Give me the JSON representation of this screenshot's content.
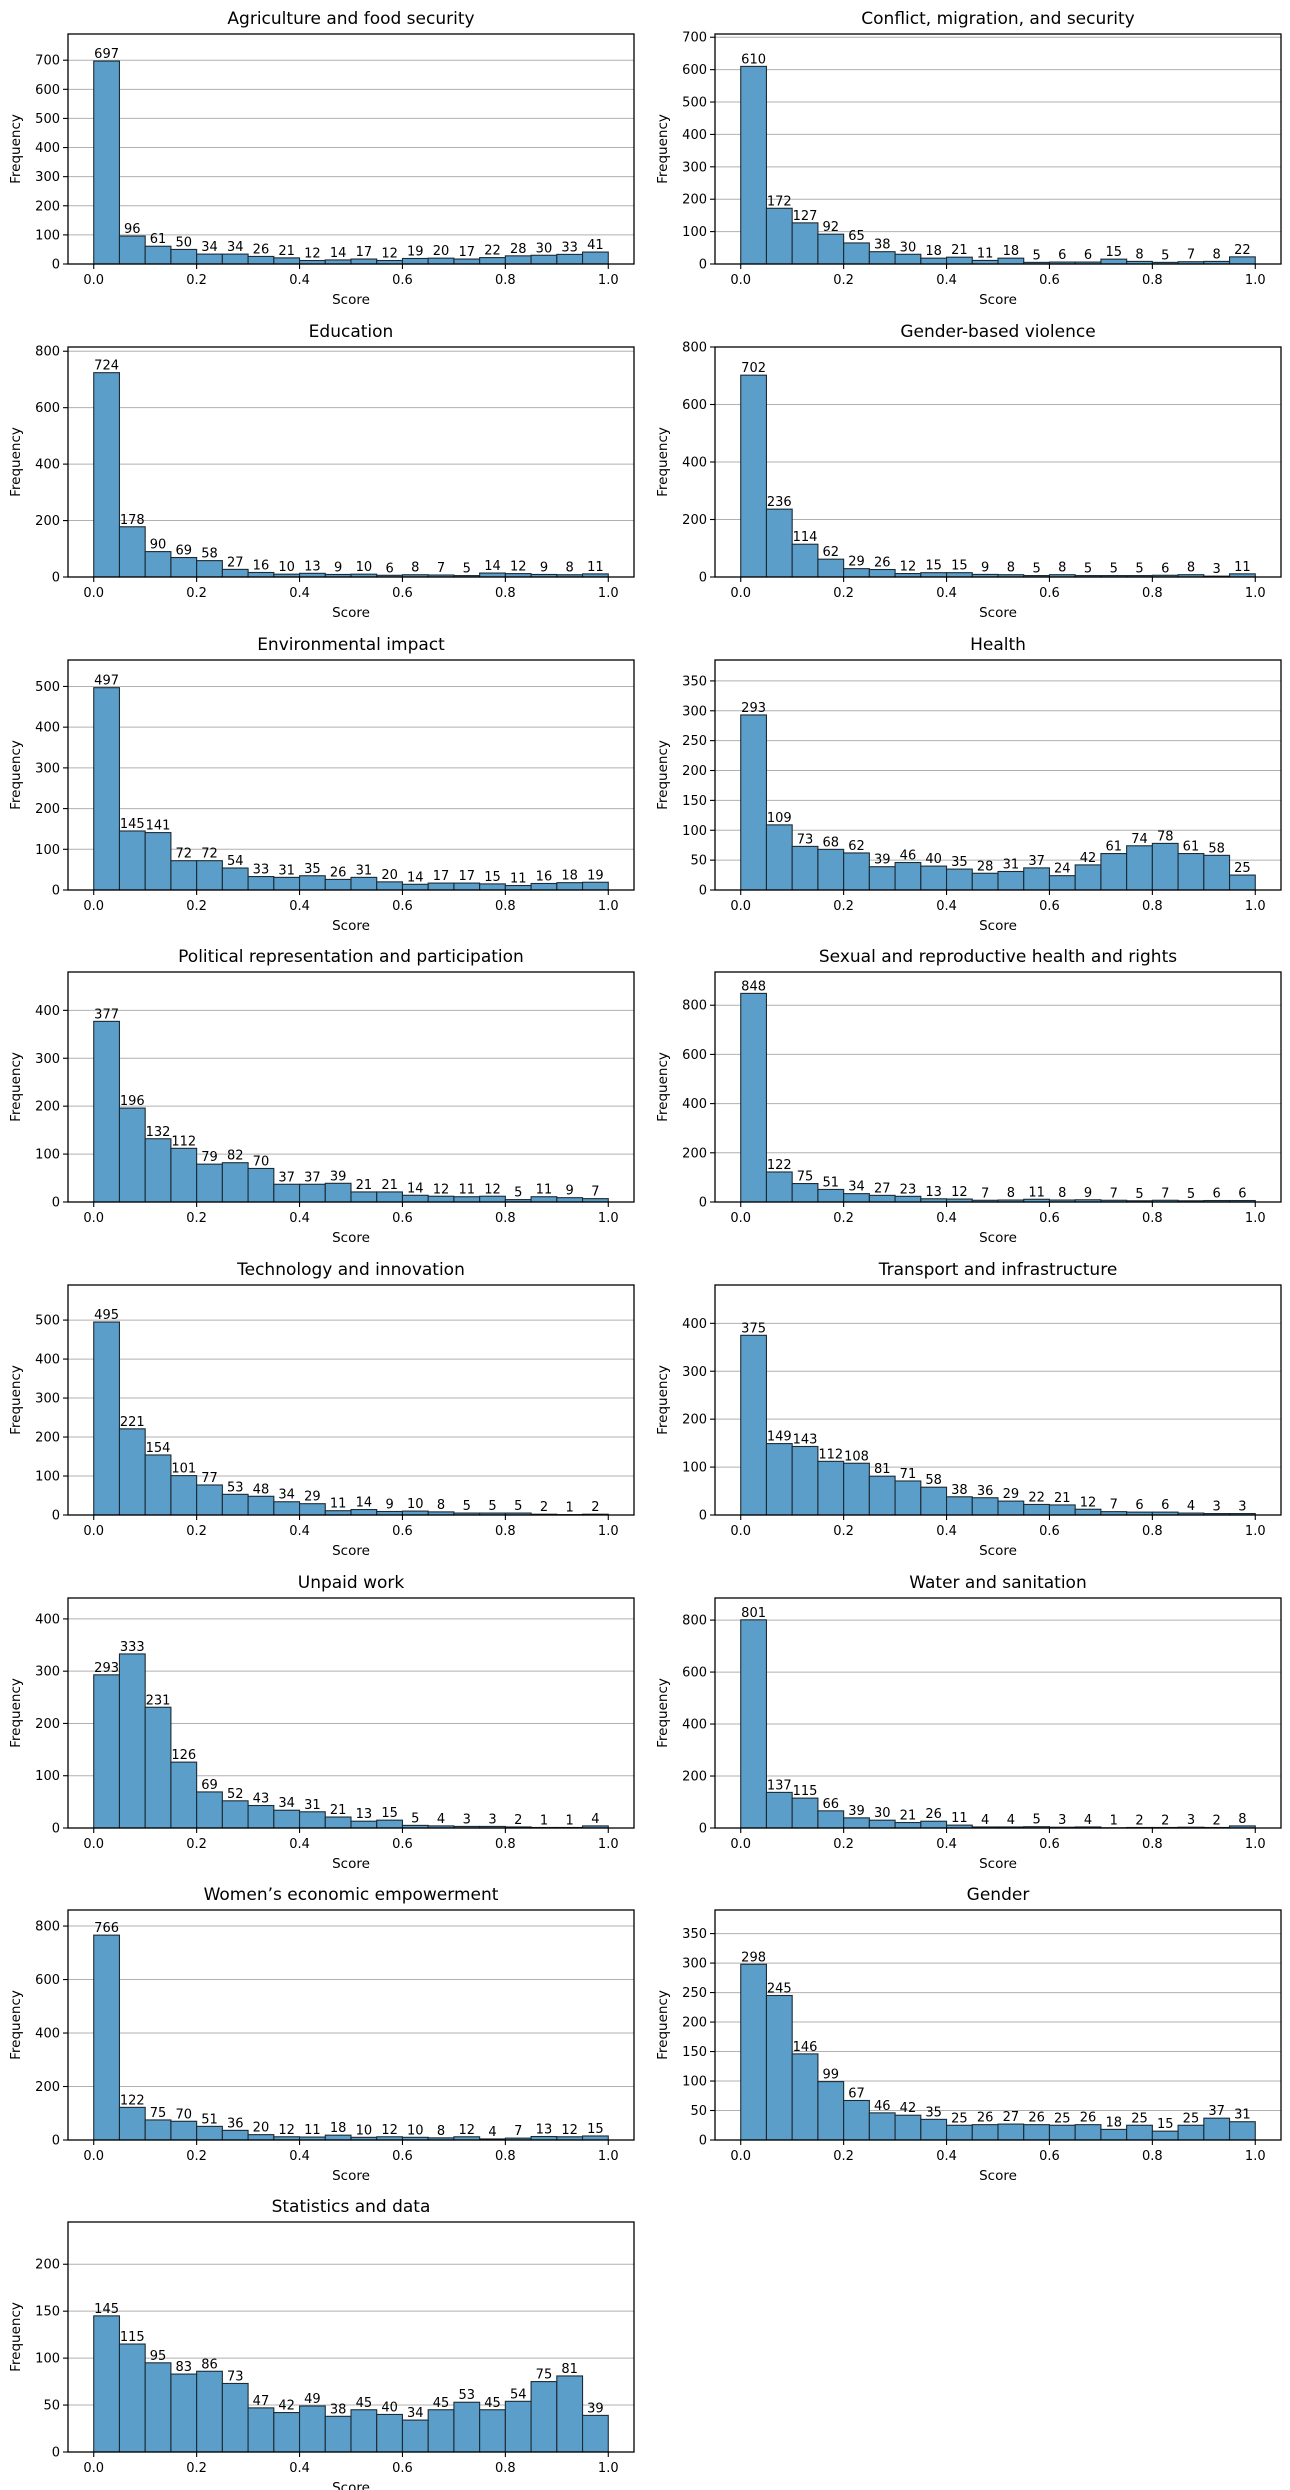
{
  "figure": {
    "xlabel": "Score",
    "ylabel": "Frequency"
  },
  "chart_data": [
    {
      "type": "bar",
      "title": "Agriculture and food security",
      "xlabel": "Score",
      "ylabel": "Frequency",
      "bin_start": 0.0,
      "bin_width": 0.05,
      "xlim": [
        -0.05,
        1.05
      ],
      "xticks": [
        0.0,
        0.2,
        0.4,
        0.6,
        0.8,
        1.0
      ],
      "ylim": [
        0,
        790
      ],
      "yticks": [
        0,
        100,
        200,
        300,
        400,
        500,
        600,
        700
      ],
      "values": [
        697,
        96,
        61,
        50,
        34,
        34,
        26,
        21,
        12,
        14,
        17,
        12,
        19,
        20,
        17,
        22,
        28,
        30,
        33,
        41
      ]
    },
    {
      "type": "bar",
      "title": "Conflict, migration, and security",
      "xlabel": "Score",
      "ylabel": "Frequency",
      "bin_start": 0.0,
      "bin_width": 0.05,
      "xlim": [
        -0.05,
        1.05
      ],
      "xticks": [
        0.0,
        0.2,
        0.4,
        0.6,
        0.8,
        1.0
      ],
      "ylim": [
        0,
        710
      ],
      "yticks": [
        0,
        100,
        200,
        300,
        400,
        500,
        600,
        700
      ],
      "values": [
        610,
        172,
        127,
        92,
        65,
        38,
        30,
        18,
        21,
        11,
        18,
        5,
        6,
        6,
        15,
        8,
        5,
        7,
        8,
        22
      ]
    },
    {
      "type": "bar",
      "title": "Education",
      "xlabel": "Score",
      "ylabel": "Frequency",
      "bin_start": 0.0,
      "bin_width": 0.05,
      "xlim": [
        -0.05,
        1.05
      ],
      "xticks": [
        0.0,
        0.2,
        0.4,
        0.6,
        0.8,
        1.0
      ],
      "ylim": [
        0,
        815
      ],
      "yticks": [
        0,
        200,
        400,
        600,
        800
      ],
      "values": [
        724,
        178,
        90,
        69,
        58,
        27,
        16,
        10,
        13,
        9,
        10,
        6,
        8,
        7,
        5,
        14,
        12,
        9,
        8,
        11
      ]
    },
    {
      "type": "bar",
      "title": "Gender-based violence",
      "xlabel": "Score",
      "ylabel": "Frequency",
      "bin_start": 0.0,
      "bin_width": 0.05,
      "xlim": [
        -0.05,
        1.05
      ],
      "xticks": [
        0.0,
        0.2,
        0.4,
        0.6,
        0.8,
        1.0
      ],
      "ylim": [
        0,
        800
      ],
      "yticks": [
        0,
        200,
        400,
        600,
        800
      ],
      "values": [
        702,
        236,
        114,
        62,
        29,
        26,
        12,
        15,
        15,
        9,
        8,
        5,
        8,
        5,
        5,
        5,
        6,
        8,
        3,
        11
      ]
    },
    {
      "type": "bar",
      "title": "Environmental impact",
      "xlabel": "Score",
      "ylabel": "Frequency",
      "bin_start": 0.0,
      "bin_width": 0.05,
      "xlim": [
        -0.05,
        1.05
      ],
      "xticks": [
        0.0,
        0.2,
        0.4,
        0.6,
        0.8,
        1.0
      ],
      "ylim": [
        0,
        565
      ],
      "yticks": [
        0,
        100,
        200,
        300,
        400,
        500
      ],
      "values": [
        497,
        145,
        141,
        72,
        72,
        54,
        33,
        31,
        35,
        26,
        31,
        20,
        14,
        17,
        17,
        15,
        11,
        16,
        18,
        19
      ]
    },
    {
      "type": "bar",
      "title": "Health",
      "xlabel": "Score",
      "ylabel": "Frequency",
      "bin_start": 0.0,
      "bin_width": 0.05,
      "xlim": [
        -0.05,
        1.05
      ],
      "xticks": [
        0.0,
        0.2,
        0.4,
        0.6,
        0.8,
        1.0
      ],
      "ylim": [
        0,
        385
      ],
      "yticks": [
        0,
        50,
        100,
        150,
        200,
        250,
        300,
        350
      ],
      "values": [
        293,
        109,
        73,
        68,
        62,
        39,
        46,
        40,
        35,
        28,
        31,
        37,
        24,
        42,
        61,
        74,
        78,
        61,
        58,
        25
      ]
    },
    {
      "type": "bar",
      "title": "Political representation and participation",
      "xlabel": "Score",
      "ylabel": "Frequency",
      "bin_start": 0.0,
      "bin_width": 0.05,
      "xlim": [
        -0.05,
        1.05
      ],
      "xticks": [
        0.0,
        0.2,
        0.4,
        0.6,
        0.8,
        1.0
      ],
      "ylim": [
        0,
        480
      ],
      "yticks": [
        0,
        100,
        200,
        300,
        400
      ],
      "values": [
        377,
        196,
        132,
        112,
        79,
        82,
        70,
        37,
        37,
        39,
        21,
        21,
        14,
        12,
        11,
        12,
        5,
        11,
        9,
        7
      ]
    },
    {
      "type": "bar",
      "title": "Sexual and reproductive health and rights",
      "xlabel": "Score",
      "ylabel": "Frequency",
      "bin_start": 0.0,
      "bin_width": 0.05,
      "xlim": [
        -0.05,
        1.05
      ],
      "xticks": [
        0.0,
        0.2,
        0.4,
        0.6,
        0.8,
        1.0
      ],
      "ylim": [
        0,
        935
      ],
      "yticks": [
        0,
        200,
        400,
        600,
        800
      ],
      "values": [
        848,
        122,
        75,
        51,
        34,
        27,
        23,
        13,
        12,
        7,
        8,
        11,
        8,
        9,
        7,
        5,
        7,
        5,
        6,
        6
      ]
    },
    {
      "type": "bar",
      "title": "Technology and innovation",
      "xlabel": "Score",
      "ylabel": "Frequency",
      "bin_start": 0.0,
      "bin_width": 0.05,
      "xlim": [
        -0.05,
        1.05
      ],
      "xticks": [
        0.0,
        0.2,
        0.4,
        0.6,
        0.8,
        1.0
      ],
      "ylim": [
        0,
        590
      ],
      "yticks": [
        0,
        100,
        200,
        300,
        400,
        500
      ],
      "values": [
        495,
        221,
        154,
        101,
        77,
        53,
        48,
        34,
        29,
        11,
        14,
        9,
        10,
        8,
        5,
        5,
        5,
        2,
        1,
        2
      ]
    },
    {
      "type": "bar",
      "title": "Transport and infrastructure",
      "xlabel": "Score",
      "ylabel": "Frequency",
      "bin_start": 0.0,
      "bin_width": 0.05,
      "xlim": [
        -0.05,
        1.05
      ],
      "xticks": [
        0.0,
        0.2,
        0.4,
        0.6,
        0.8,
        1.0
      ],
      "ylim": [
        0,
        480
      ],
      "yticks": [
        0,
        100,
        200,
        300,
        400
      ],
      "values": [
        375,
        149,
        143,
        112,
        108,
        81,
        71,
        58,
        38,
        36,
        29,
        22,
        21,
        12,
        7,
        6,
        6,
        4,
        3,
        3
      ]
    },
    {
      "type": "bar",
      "title": "Unpaid work",
      "xlabel": "Score",
      "ylabel": "Frequency",
      "bin_start": 0.0,
      "bin_width": 0.05,
      "xlim": [
        -0.05,
        1.05
      ],
      "xticks": [
        0.0,
        0.2,
        0.4,
        0.6,
        0.8,
        1.0
      ],
      "ylim": [
        0,
        440
      ],
      "yticks": [
        0,
        100,
        200,
        300,
        400
      ],
      "values": [
        293,
        333,
        231,
        126,
        69,
        52,
        43,
        34,
        31,
        21,
        13,
        15,
        5,
        4,
        3,
        3,
        2,
        1,
        1,
        4
      ]
    },
    {
      "type": "bar",
      "title": "Water and sanitation",
      "xlabel": "Score",
      "ylabel": "Frequency",
      "bin_start": 0.0,
      "bin_width": 0.05,
      "xlim": [
        -0.05,
        1.05
      ],
      "xticks": [
        0.0,
        0.2,
        0.4,
        0.6,
        0.8,
        1.0
      ],
      "ylim": [
        0,
        885
      ],
      "yticks": [
        0,
        200,
        400,
        600,
        800
      ],
      "values": [
        801,
        137,
        115,
        66,
        39,
        30,
        21,
        26,
        11,
        4,
        4,
        5,
        3,
        4,
        1,
        2,
        2,
        3,
        2,
        8
      ]
    },
    {
      "type": "bar",
      "title": "Women’s economic empowerment",
      "xlabel": "Score",
      "ylabel": "Frequency",
      "bin_start": 0.0,
      "bin_width": 0.05,
      "xlim": [
        -0.05,
        1.05
      ],
      "xticks": [
        0.0,
        0.2,
        0.4,
        0.6,
        0.8,
        1.0
      ],
      "ylim": [
        0,
        860
      ],
      "yticks": [
        0,
        200,
        400,
        600,
        800
      ],
      "values": [
        766,
        122,
        75,
        70,
        51,
        36,
        20,
        12,
        11,
        18,
        10,
        12,
        10,
        8,
        12,
        4,
        7,
        13,
        12,
        15
      ]
    },
    {
      "type": "bar",
      "title": "Gender",
      "xlabel": "Score",
      "ylabel": "Frequency",
      "bin_start": 0.0,
      "bin_width": 0.05,
      "xlim": [
        -0.05,
        1.05
      ],
      "xticks": [
        0.0,
        0.2,
        0.4,
        0.6,
        0.8,
        1.0
      ],
      "ylim": [
        0,
        390
      ],
      "yticks": [
        0,
        50,
        100,
        150,
        200,
        250,
        300,
        350
      ],
      "values": [
        298,
        245,
        146,
        99,
        67,
        46,
        42,
        35,
        25,
        26,
        27,
        26,
        25,
        26,
        18,
        25,
        15,
        25,
        37,
        31
      ]
    },
    {
      "type": "bar",
      "title": "Statistics and data",
      "xlabel": "Score",
      "ylabel": "Frequency",
      "bin_start": 0.0,
      "bin_width": 0.05,
      "xlim": [
        -0.05,
        1.05
      ],
      "xticks": [
        0.0,
        0.2,
        0.4,
        0.6,
        0.8,
        1.0
      ],
      "ylim": [
        0,
        245
      ],
      "yticks": [
        0,
        50,
        100,
        150,
        200
      ],
      "values": [
        145,
        115,
        95,
        83,
        86,
        73,
        47,
        42,
        49,
        38,
        45,
        40,
        34,
        45,
        53,
        45,
        54,
        75,
        81,
        39
      ]
    }
  ]
}
